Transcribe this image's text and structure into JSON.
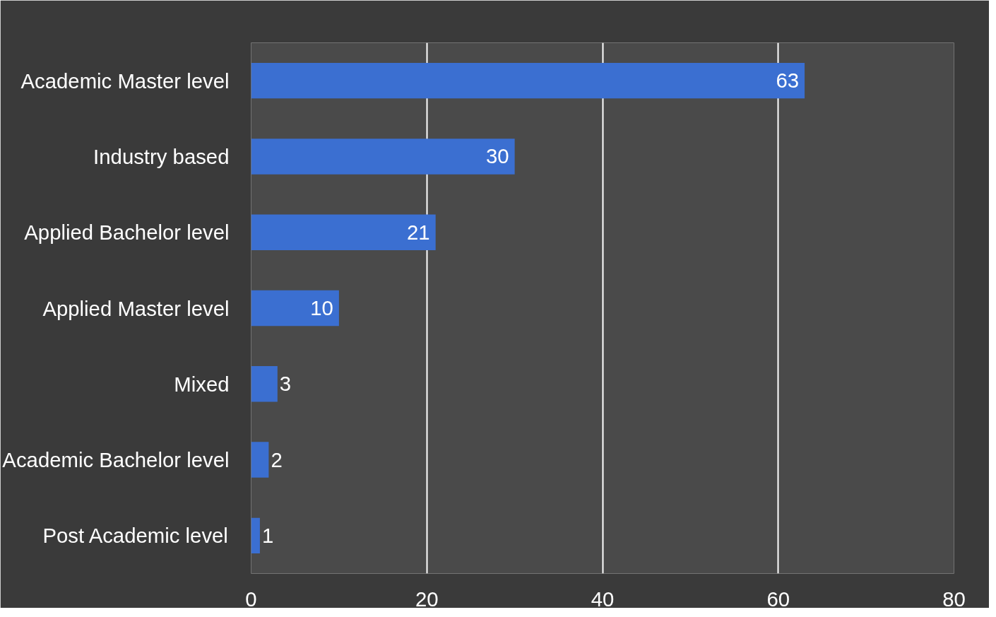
{
  "chart_data": {
    "type": "bar",
    "orientation": "horizontal",
    "categories": [
      "Academic Master level",
      "Industry based",
      "Applied Bachelor level",
      "Applied Master level",
      "Mixed",
      "Academic Bachelor level",
      "Post Academic level"
    ],
    "values": [
      63,
      30,
      21,
      10,
      3,
      2,
      1
    ],
    "color": "#3b6fd1",
    "xlim": [
      0,
      80
    ],
    "xticks": [
      0,
      20,
      40,
      60,
      80
    ],
    "grid": "x",
    "data_labels": true
  }
}
